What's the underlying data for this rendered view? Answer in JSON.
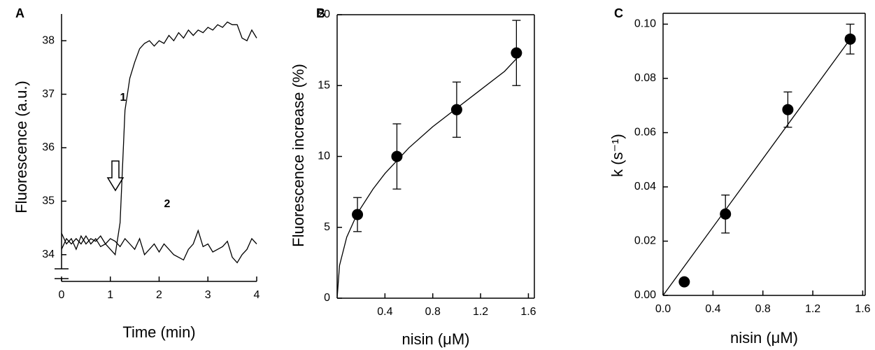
{
  "chart_data": [
    {
      "type": "line",
      "panel": "A",
      "xlabel": "Time (min)",
      "ylabel": "Fluorescence (a.u.)",
      "xlim": [
        0,
        4
      ],
      "ylim": [
        33.5,
        38.5
      ],
      "xticks": [
        0,
        1,
        2,
        3,
        4
      ],
      "yticks": [
        34,
        35,
        36,
        37,
        38
      ],
      "color": "#000000",
      "series": [
        {
          "label": "1",
          "x": [
            0,
            0.1,
            0.2,
            0.3,
            0.4,
            0.5,
            0.6,
            0.7,
            0.8,
            0.9,
            1.0,
            1.1,
            1.2,
            1.3,
            1.4,
            1.5,
            1.6,
            1.7,
            1.8,
            1.9,
            2.0,
            2.1,
            2.2,
            2.3,
            2.4,
            2.5,
            2.6,
            2.7,
            2.8,
            2.9,
            3.0,
            3.1,
            3.2,
            3.3,
            3.4,
            3.5,
            3.6,
            3.7,
            3.8,
            3.9,
            4.0
          ],
          "values": [
            34.1,
            34.3,
            34.2,
            34.3,
            34.2,
            34.35,
            34.2,
            34.3,
            34.15,
            34.2,
            34.1,
            34.0,
            34.6,
            36.7,
            37.3,
            37.6,
            37.85,
            37.95,
            38.0,
            37.9,
            38.0,
            37.95,
            38.1,
            38.0,
            38.15,
            38.05,
            38.2,
            38.1,
            38.2,
            38.15,
            38.25,
            38.2,
            38.3,
            38.25,
            38.35,
            38.3,
            38.3,
            38.05,
            38.0,
            38.2,
            38.05
          ]
        },
        {
          "label": "2",
          "x": [
            0,
            0.1,
            0.2,
            0.3,
            0.4,
            0.5,
            0.6,
            0.7,
            0.8,
            0.9,
            1.0,
            1.1,
            1.2,
            1.3,
            1.4,
            1.5,
            1.6,
            1.7,
            1.8,
            1.9,
            2.0,
            2.1,
            2.2,
            2.3,
            2.4,
            2.5,
            2.6,
            2.7,
            2.8,
            2.9,
            3.0,
            3.1,
            3.2,
            3.3,
            3.4,
            3.5,
            3.6,
            3.7,
            3.8,
            3.9,
            4.0
          ],
          "values": [
            34.4,
            34.2,
            34.3,
            34.1,
            34.35,
            34.2,
            34.3,
            34.25,
            34.35,
            34.2,
            34.3,
            34.25,
            34.15,
            34.3,
            34.2,
            34.1,
            34.3,
            34.0,
            34.1,
            34.2,
            34.05,
            34.2,
            34.1,
            34.0,
            33.95,
            33.9,
            34.1,
            34.2,
            34.45,
            34.15,
            34.2,
            34.05,
            34.1,
            34.15,
            34.25,
            33.95,
            33.85,
            34.0,
            34.1,
            34.3,
            34.2
          ]
        }
      ]
    },
    {
      "type": "scatter",
      "panel": "B",
      "xlabel": "nisin (μM)",
      "ylabel": "Fluorescence increase (%)",
      "xlim": [
        0,
        1.65
      ],
      "ylim": [
        0,
        20
      ],
      "xticks": [
        0.4,
        0.8,
        1.2,
        1.6
      ],
      "yticks": [
        0,
        5,
        10,
        15,
        20
      ],
      "color": "#000000",
      "x": [
        0.17,
        0.5,
        1.0,
        1.5
      ],
      "values": [
        5.9,
        10.0,
        13.3,
        17.3
      ],
      "errors": [
        1.2,
        2.3,
        1.95,
        2.3
      ],
      "fit": {
        "x": [
          0,
          0.02,
          0.08,
          0.17,
          0.3,
          0.4,
          0.6,
          0.8,
          1.0,
          1.2,
          1.4,
          1.5
        ],
        "values": [
          0,
          2.3,
          4.3,
          6.0,
          7.7,
          8.8,
          10.6,
          12.1,
          13.4,
          14.7,
          16.0,
          16.9
        ]
      }
    },
    {
      "type": "scatter",
      "panel": "C",
      "xlabel": "nisin (μM)",
      "ylabel": "k (s⁻¹)",
      "xlim": [
        0,
        1.62
      ],
      "ylim": [
        0,
        0.104
      ],
      "xticks": [
        {
          "value": 0,
          "label": "0.0"
        },
        0.4,
        0.8,
        1.2,
        1.6
      ],
      "yticks": [
        {
          "value": 0,
          "label": "0.00"
        },
        0.02,
        0.04,
        0.06,
        0.08,
        {
          "value": 0.1,
          "label": "0.10"
        }
      ],
      "color": "#000000",
      "x": [
        0.17,
        0.5,
        1.0,
        1.5
      ],
      "values": [
        0.005,
        0.03,
        0.0685,
        0.0945
      ],
      "errors": [
        null,
        0.007,
        0.0065,
        0.0055
      ],
      "fit": {
        "x": [
          0,
          1.5
        ],
        "values": [
          0,
          0.0945
        ]
      }
    }
  ]
}
